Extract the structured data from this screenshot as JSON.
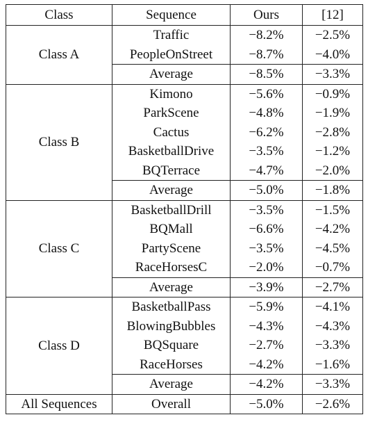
{
  "header": {
    "class": "Class",
    "sequence": "Sequence",
    "ours": "Ours",
    "ref": "[12]"
  },
  "groups": [
    {
      "name": "Class A",
      "rows": [
        {
          "sequence": "Traffic",
          "ours": "−8.2%",
          "ref": "−2.5%"
        },
        {
          "sequence": "PeopleOnStreet",
          "ours": "−8.7%",
          "ref": "−4.0%"
        }
      ],
      "average": {
        "label": "Average",
        "ours": "−8.5%",
        "ref": "−3.3%"
      }
    },
    {
      "name": "Class B",
      "rows": [
        {
          "sequence": "Kimono",
          "ours": "−5.6%",
          "ref": "−0.9%"
        },
        {
          "sequence": "ParkScene",
          "ours": "−4.8%",
          "ref": "−1.9%"
        },
        {
          "sequence": "Cactus",
          "ours": "−6.2%",
          "ref": "−2.8%"
        },
        {
          "sequence": "BasketballDrive",
          "ours": "−3.5%",
          "ref": "−1.2%"
        },
        {
          "sequence": "BQTerrace",
          "ours": "−4.7%",
          "ref": "−2.0%"
        }
      ],
      "average": {
        "label": "Average",
        "ours": "−5.0%",
        "ref": "−1.8%"
      }
    },
    {
      "name": "Class C",
      "rows": [
        {
          "sequence": "BasketballDrill",
          "ours": "−3.5%",
          "ref": "−1.5%"
        },
        {
          "sequence": "BQMall",
          "ours": "−6.6%",
          "ref": "−4.2%"
        },
        {
          "sequence": "PartyScene",
          "ours": "−3.5%",
          "ref": "−4.5%"
        },
        {
          "sequence": "RaceHorsesC",
          "ours": "−2.0%",
          "ref": "−0.7%"
        }
      ],
      "average": {
        "label": "Average",
        "ours": "−3.9%",
        "ref": "−2.7%"
      }
    },
    {
      "name": "Class D",
      "rows": [
        {
          "sequence": "BasketballPass",
          "ours": "−5.9%",
          "ref": "−4.1%"
        },
        {
          "sequence": "BlowingBubbles",
          "ours": "−4.3%",
          "ref": "−4.3%"
        },
        {
          "sequence": "BQSquare",
          "ours": "−2.7%",
          "ref": "−3.3%"
        },
        {
          "sequence": "RaceHorses",
          "ours": "−4.2%",
          "ref": "−1.6%"
        }
      ],
      "average": {
        "label": "Average",
        "ours": "−4.2%",
        "ref": "−3.3%"
      }
    }
  ],
  "overall": {
    "class": "All Sequences",
    "sequence": "Overall",
    "ours": "−5.0%",
    "ref": "−2.6%"
  }
}
